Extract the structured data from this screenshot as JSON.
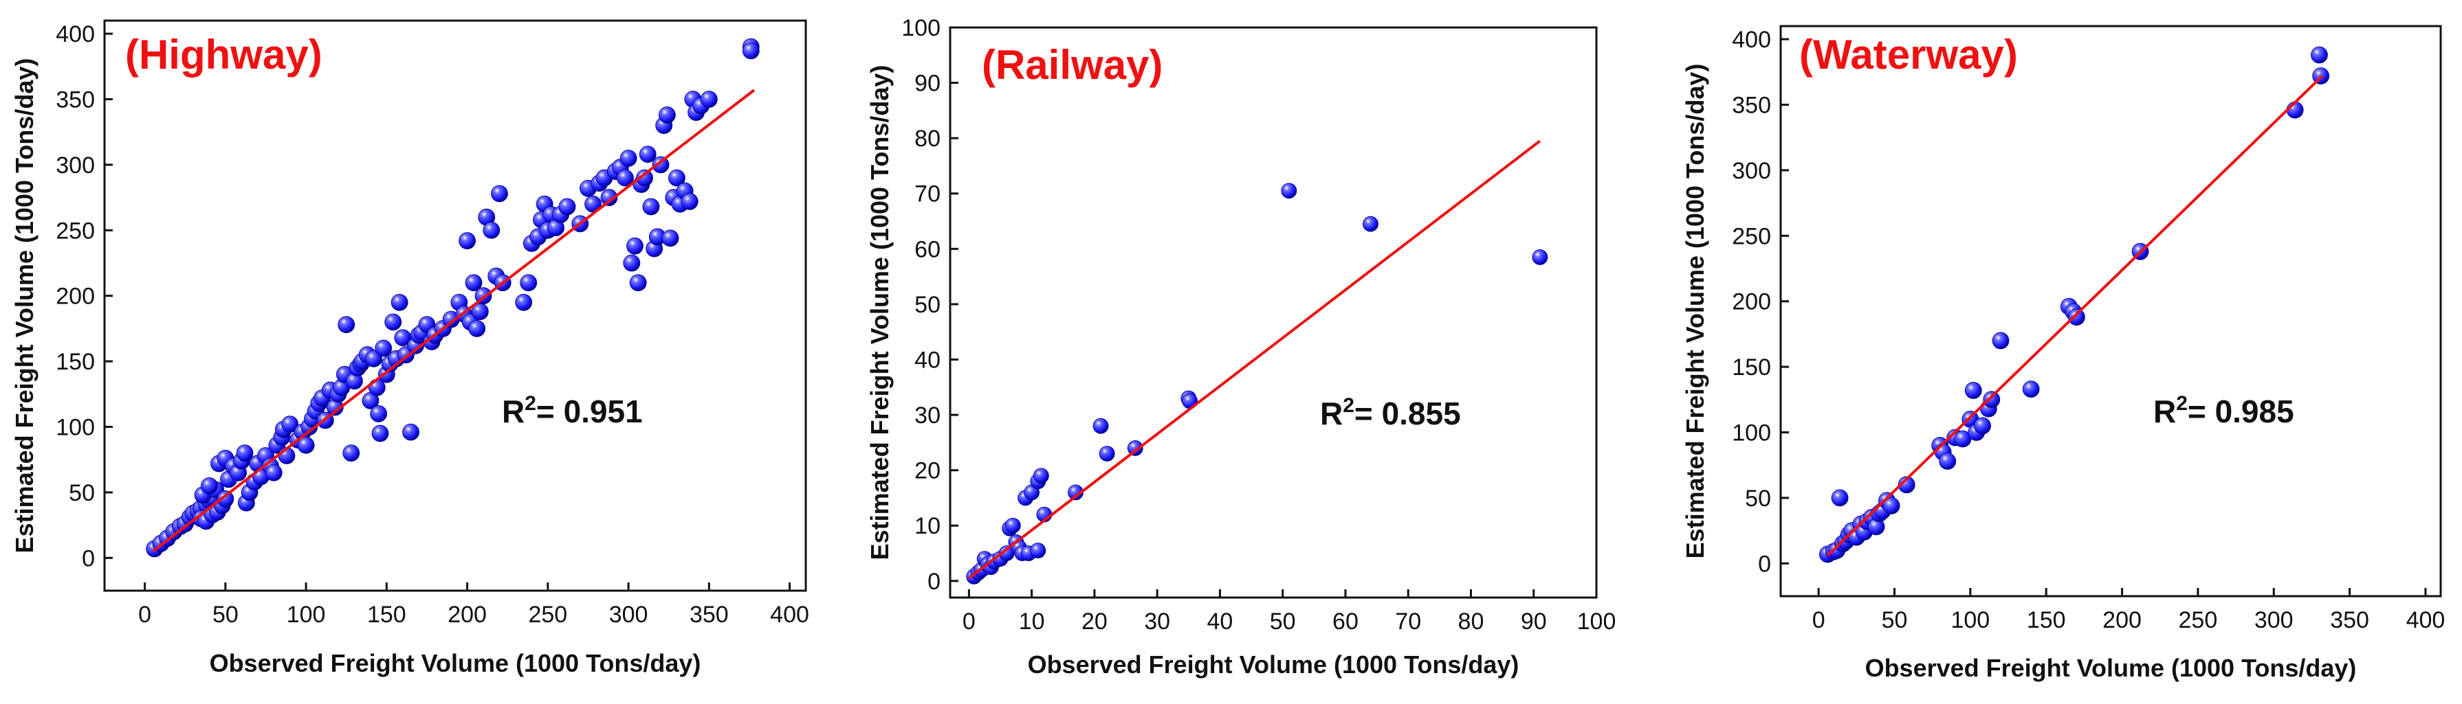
{
  "figure": {
    "point_color": "#1a1aff",
    "fit_color": "#ee1111"
  },
  "chart_data": [
    {
      "type": "scatter",
      "title": "(Highway)",
      "xlabel": "Observed Freight Volume (1000 Tons/day)",
      "ylabel": "Estimated Freight Volume (1000 Tons/day)",
      "r2_label": "R",
      "r2_sup": "2",
      "r2_value": "= 0.951",
      "xlim": [
        -25,
        410
      ],
      "ylim": [
        -25,
        410
      ],
      "xticks": [
        0,
        50,
        100,
        150,
        200,
        250,
        300,
        350,
        400
      ],
      "yticks": [
        0,
        50,
        100,
        150,
        200,
        250,
        300,
        350,
        400
      ],
      "fit_line": {
        "x": [
          5,
          378
        ],
        "y": [
          5,
          357
        ]
      },
      "points": [
        [
          6,
          7
        ],
        [
          10,
          11
        ],
        [
          14,
          15
        ],
        [
          18,
          20
        ],
        [
          22,
          24
        ],
        [
          25,
          26
        ],
        [
          28,
          31
        ],
        [
          30,
          34
        ],
        [
          33,
          36
        ],
        [
          35,
          38
        ],
        [
          38,
          41
        ],
        [
          40,
          44
        ],
        [
          42,
          46
        ],
        [
          35,
          30
        ],
        [
          38,
          28
        ],
        [
          42,
          33
        ],
        [
          45,
          35
        ],
        [
          48,
          40
        ],
        [
          36,
          48
        ],
        [
          44,
          52
        ],
        [
          40,
          55
        ],
        [
          50,
          45
        ],
        [
          52,
          60
        ],
        [
          46,
          72
        ],
        [
          50,
          76
        ],
        [
          55,
          70
        ],
        [
          58,
          65
        ],
        [
          60,
          74
        ],
        [
          62,
          80
        ],
        [
          63,
          42
        ],
        [
          65,
          50
        ],
        [
          68,
          58
        ],
        [
          70,
          72
        ],
        [
          72,
          62
        ],
        [
          75,
          78
        ],
        [
          78,
          70
        ],
        [
          80,
          65
        ],
        [
          82,
          86
        ],
        [
          85,
          92
        ],
        [
          86,
          98
        ],
        [
          88,
          78
        ],
        [
          90,
          102
        ],
        [
          95,
          90
        ],
        [
          98,
          96
        ],
        [
          100,
          86
        ],
        [
          102,
          100
        ],
        [
          104,
          106
        ],
        [
          106,
          112
        ],
        [
          108,
          118
        ],
        [
          110,
          122
        ],
        [
          112,
          105
        ],
        [
          115,
          128
        ],
        [
          118,
          115
        ],
        [
          120,
          125
        ],
        [
          122,
          130
        ],
        [
          124,
          140
        ],
        [
          125,
          178
        ],
        [
          128,
          80
        ],
        [
          130,
          135
        ],
        [
          132,
          145
        ],
        [
          134,
          148
        ],
        [
          135,
          150
        ],
        [
          138,
          155
        ],
        [
          140,
          120
        ],
        [
          142,
          152
        ],
        [
          144,
          130
        ],
        [
          145,
          110
        ],
        [
          146,
          95
        ],
        [
          148,
          160
        ],
        [
          150,
          140
        ],
        [
          152,
          148
        ],
        [
          154,
          180
        ],
        [
          156,
          152
        ],
        [
          158,
          195
        ],
        [
          160,
          168
        ],
        [
          162,
          155
        ],
        [
          165,
          96
        ],
        [
          168,
          162
        ],
        [
          170,
          170
        ],
        [
          172,
          172
        ],
        [
          175,
          178
        ],
        [
          178,
          165
        ],
        [
          180,
          170
        ],
        [
          185,
          175
        ],
        [
          190,
          182
        ],
        [
          195,
          195
        ],
        [
          198,
          186
        ],
        [
          200,
          242
        ],
        [
          202,
          180
        ],
        [
          204,
          210
        ],
        [
          206,
          175
        ],
        [
          208,
          188
        ],
        [
          210,
          200
        ],
        [
          212,
          260
        ],
        [
          215,
          250
        ],
        [
          218,
          215
        ],
        [
          220,
          278
        ],
        [
          222,
          210
        ],
        [
          235,
          195
        ],
        [
          238,
          210
        ],
        [
          240,
          240
        ],
        [
          244,
          245
        ],
        [
          246,
          258
        ],
        [
          248,
          270
        ],
        [
          250,
          250
        ],
        [
          252,
          262
        ],
        [
          255,
          252
        ],
        [
          258,
          262
        ],
        [
          262,
          268
        ],
        [
          270,
          255
        ],
        [
          275,
          282
        ],
        [
          278,
          270
        ],
        [
          282,
          286
        ],
        [
          285,
          290
        ],
        [
          288,
          275
        ],
        [
          292,
          295
        ],
        [
          295,
          298
        ],
        [
          298,
          290
        ],
        [
          300,
          305
        ],
        [
          302,
          225
        ],
        [
          304,
          238
        ],
        [
          306,
          210
        ],
        [
          308,
          285
        ],
        [
          310,
          290
        ],
        [
          312,
          308
        ],
        [
          314,
          268
        ],
        [
          316,
          236
        ],
        [
          318,
          245
        ],
        [
          320,
          300
        ],
        [
          322,
          330
        ],
        [
          324,
          338
        ],
        [
          326,
          244
        ],
        [
          328,
          275
        ],
        [
          330,
          290
        ],
        [
          332,
          270
        ],
        [
          335,
          280
        ],
        [
          338,
          272
        ],
        [
          340,
          350
        ],
        [
          342,
          340
        ],
        [
          345,
          345
        ],
        [
          350,
          350
        ],
        [
          376,
          390
        ],
        [
          376,
          387
        ]
      ]
    },
    {
      "type": "scatter",
      "title": "(Railway)",
      "xlabel": "Observed Freight Volume (1000 Tons/day)",
      "ylabel": "Estimated Freight Volume (1000 Tons/day)",
      "r2_label": "R",
      "r2_sup": "2",
      "r2_value": "= 0.855",
      "xlim": [
        -3,
        100
      ],
      "ylim": [
        -3,
        100
      ],
      "xticks": [
        0,
        10,
        20,
        30,
        40,
        50,
        60,
        70,
        80,
        90,
        100
      ],
      "yticks": [
        0,
        10,
        20,
        30,
        40,
        50,
        60,
        70,
        80,
        90,
        100
      ],
      "fit_line": {
        "x": [
          0,
          91
        ],
        "y": [
          0.5,
          79.5
        ]
      },
      "points": [
        [
          0.8,
          0.8
        ],
        [
          1.5,
          1.5
        ],
        [
          2,
          2
        ],
        [
          2.5,
          4
        ],
        [
          3,
          3
        ],
        [
          3.5,
          2.5
        ],
        [
          4,
          3.5
        ],
        [
          5,
          4
        ],
        [
          6,
          5
        ],
        [
          6.5,
          9.5
        ],
        [
          7,
          10
        ],
        [
          7.5,
          7
        ],
        [
          8,
          6
        ],
        [
          8.5,
          5
        ],
        [
          9,
          15
        ],
        [
          9.5,
          5
        ],
        [
          10,
          16
        ],
        [
          11,
          18
        ],
        [
          11.5,
          19
        ],
        [
          11,
          5.5
        ],
        [
          12,
          12
        ],
        [
          17,
          16
        ],
        [
          21,
          28
        ],
        [
          22,
          23
        ],
        [
          26.5,
          24
        ],
        [
          35,
          33
        ],
        [
          35.2,
          32.5
        ],
        [
          51,
          70.5
        ],
        [
          64,
          64.5
        ],
        [
          91,
          58.5
        ]
      ]
    },
    {
      "type": "scatter",
      "title": "(Waterway)",
      "xlabel": "Observed Freight Volume (1000 Tons/day)",
      "ylabel": "Estimated Freight Volume (1000 Tons/day)",
      "r2_label": "R",
      "r2_sup": "2",
      "r2_value": "= 0.985",
      "xlim": [
        -25,
        410
      ],
      "ylim": [
        -25,
        410
      ],
      "xticks": [
        0,
        50,
        100,
        150,
        200,
        250,
        300,
        350,
        400
      ],
      "yticks": [
        0,
        50,
        100,
        150,
        200,
        250,
        300,
        350,
        400
      ],
      "fit_line": {
        "x": [
          6,
          332
        ],
        "y": [
          6,
          372
        ]
      },
      "points": [
        [
          6,
          7
        ],
        [
          10,
          9
        ],
        [
          12,
          10
        ],
        [
          14,
          50
        ],
        [
          16,
          15
        ],
        [
          18,
          17
        ],
        [
          20,
          22
        ],
        [
          22,
          25
        ],
        [
          25,
          20
        ],
        [
          28,
          30
        ],
        [
          30,
          24
        ],
        [
          32,
          32
        ],
        [
          35,
          35
        ],
        [
          38,
          28
        ],
        [
          40,
          38
        ],
        [
          42,
          40
        ],
        [
          45,
          48
        ],
        [
          48,
          44
        ],
        [
          58,
          60
        ],
        [
          80,
          90
        ],
        [
          82,
          85
        ],
        [
          85,
          78
        ],
        [
          90,
          96
        ],
        [
          95,
          95
        ],
        [
          100,
          110
        ],
        [
          102,
          132
        ],
        [
          104,
          100
        ],
        [
          108,
          105
        ],
        [
          112,
          118
        ],
        [
          114,
          125
        ],
        [
          120,
          170
        ],
        [
          140,
          133
        ],
        [
          165,
          196
        ],
        [
          168,
          192
        ],
        [
          170,
          188
        ],
        [
          212,
          238
        ],
        [
          314,
          346
        ],
        [
          330,
          388
        ],
        [
          331,
          372
        ]
      ]
    }
  ]
}
